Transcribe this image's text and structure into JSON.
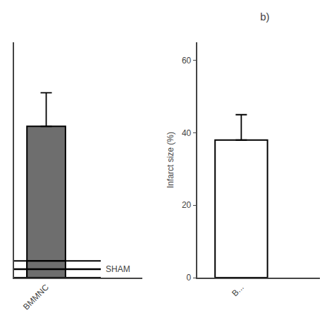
{
  "chart_data": [
    {
      "type": "bar",
      "categories": [
        "BMMNC"
      ],
      "values": [
        45
      ],
      "error_up": [
        10
      ],
      "color": "#6e6e6e",
      "ylim": [
        0,
        70
      ],
      "tick_labels": "x",
      "grid": false,
      "sham": {
        "label": "SHAM",
        "value": 2.5,
        "height": 5,
        "color": "#6e6e6e"
      }
    },
    {
      "type": "bar",
      "title": "b)",
      "categories": [
        "B..."
      ],
      "values": [
        38
      ],
      "error_up": [
        7
      ],
      "color": "#ffffff",
      "ylabel": "Infarct size (%)",
      "ylim": [
        0,
        65
      ],
      "yticks": [
        0,
        20,
        40,
        60
      ],
      "grid": false
    }
  ]
}
